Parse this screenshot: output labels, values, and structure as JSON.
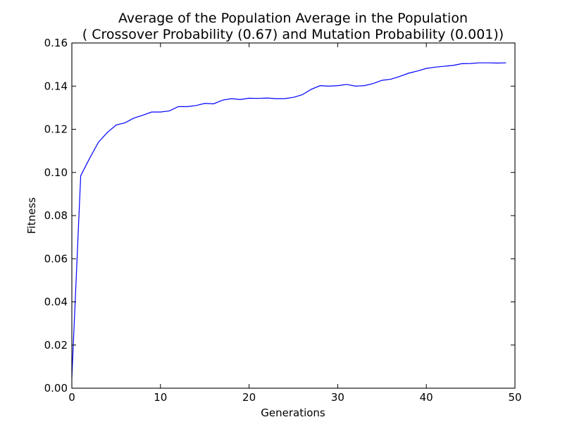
{
  "chart_data": {
    "type": "line",
    "title_lines": [
      "Average of the Population Average in the Population",
      "( Crossover Probability (0.67) and Mutation Probability (0.001))"
    ],
    "xlabel": "Generations",
    "ylabel": "Fitness",
    "xlim": [
      0,
      50
    ],
    "ylim": [
      0,
      0.16
    ],
    "x_ticks": [
      0,
      10,
      20,
      30,
      40,
      50
    ],
    "y_ticks": [
      0.0,
      0.02,
      0.04,
      0.06,
      0.08,
      0.1,
      0.12,
      0.14,
      0.16
    ],
    "x_tick_labels": [
      "0",
      "10",
      "20",
      "30",
      "40",
      "50"
    ],
    "y_tick_labels": [
      "0.00",
      "0.02",
      "0.04",
      "0.06",
      "0.08",
      "0.10",
      "0.12",
      "0.14",
      "0.16"
    ],
    "grid": false,
    "colors": {
      "line": "#0000ff",
      "axes": "#000000",
      "background": "#ffffff"
    },
    "series": [
      {
        "x": [
          0,
          1,
          2,
          3,
          4,
          5,
          6,
          7,
          8,
          9,
          10,
          11,
          12,
          13,
          14,
          15,
          16,
          17,
          18,
          19,
          20,
          21,
          22,
          23,
          24,
          25,
          26,
          27,
          28,
          29,
          30,
          31,
          32,
          33,
          34,
          35,
          36,
          37,
          38,
          39,
          40,
          41,
          42,
          43,
          44,
          45,
          46,
          47,
          48,
          49
        ],
        "y": [
          0.005,
          0.0985,
          0.1065,
          0.114,
          0.1185,
          0.122,
          0.123,
          0.1252,
          0.1265,
          0.128,
          0.128,
          0.1285,
          0.1305,
          0.1305,
          0.131,
          0.132,
          0.1318,
          0.1335,
          0.1342,
          0.1338,
          0.1344,
          0.1343,
          0.1345,
          0.1342,
          0.1342,
          0.1348,
          0.136,
          0.1385,
          0.1402,
          0.14,
          0.1402,
          0.1408,
          0.14,
          0.1402,
          0.1412,
          0.1427,
          0.1432,
          0.1445,
          0.146,
          0.147,
          0.1482,
          0.1488,
          0.1492,
          0.1496,
          0.1504,
          0.1505,
          0.1508,
          0.1508,
          0.1507,
          0.1508
        ]
      }
    ]
  }
}
